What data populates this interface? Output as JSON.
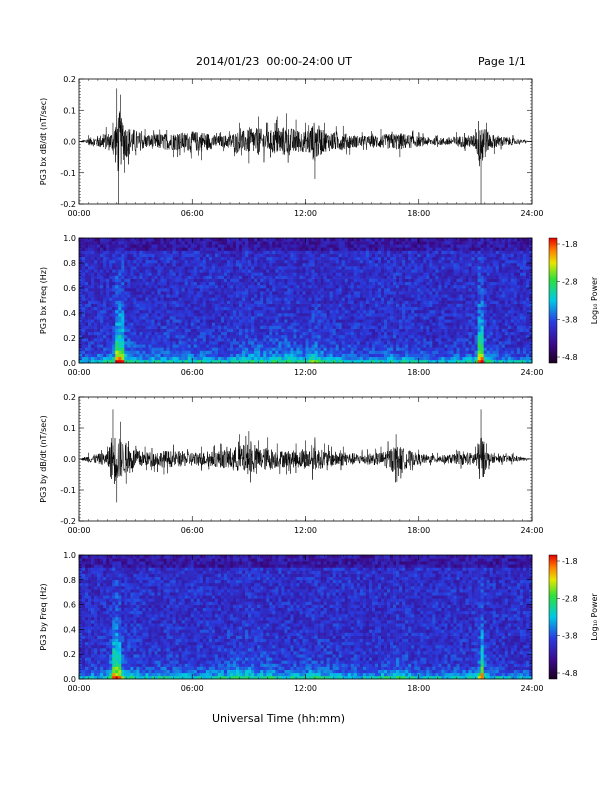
{
  "header": {
    "title": "2014/01/23  00:00-24:00 UT",
    "page": "Page 1/1"
  },
  "xaxis": {
    "label": "Universal Time (hh:mm)",
    "ticks": [
      "00:00",
      "06:00",
      "12:00",
      "18:00",
      "24:00"
    ],
    "range_hours": [
      0,
      24
    ]
  },
  "colorbar": {
    "label": "Log₁₀ Power",
    "ticks": [
      "-1.8",
      "-2.8",
      "-3.8",
      "-4.8"
    ],
    "range": [
      -4.8,
      -1.8
    ]
  },
  "chart_data": [
    {
      "type": "line",
      "ylabel": "PG3 bx dB/dt (nT/sec)",
      "ylim": [
        -0.2,
        0.2
      ],
      "yticks": [
        "0.2",
        "0.1",
        "0.0",
        "-0.1",
        "-0.2"
      ],
      "series": [
        {
          "x": [
            0,
            0.5,
            1.8,
            2.0,
            2.1,
            2.2,
            2.4,
            3.5,
            5.0,
            6.5,
            7.5,
            8.5,
            9.0,
            9.5,
            10.0,
            10.5,
            11.0,
            11.5,
            12.0,
            12.5,
            13.0,
            14.0,
            15.0,
            16.0,
            17.0,
            18.0,
            19.0,
            20.0,
            21.0,
            21.3,
            21.6,
            22.0,
            23.0,
            24.0
          ],
          "y": [
            0.0,
            0.02,
            0.06,
            0.17,
            -0.2,
            0.15,
            -0.1,
            0.04,
            -0.05,
            -0.06,
            0.03,
            0.06,
            -0.07,
            0.08,
            0.06,
            0.08,
            0.09,
            0.07,
            0.06,
            -0.12,
            0.06,
            0.05,
            0.03,
            0.04,
            -0.05,
            0.03,
            0.02,
            0.03,
            0.04,
            -0.2,
            0.06,
            -0.04,
            0.02,
            0.0
          ]
        }
      ]
    },
    {
      "type": "heatmap",
      "ylabel": "PG3 bx Freq (Hz)",
      "ylim": [
        0.0,
        1.0
      ],
      "yticks": [
        "1.0",
        "0.8",
        "0.6",
        "0.4",
        "0.2",
        "0.0"
      ],
      "zlim": [
        -4.8,
        -1.8
      ]
    },
    {
      "type": "line",
      "ylabel": "PG3 by dB/dt (nT/sec)",
      "ylim": [
        -0.2,
        0.2
      ],
      "yticks": [
        "0.2",
        "0.1",
        "0.0",
        "-0.1",
        "-0.2"
      ],
      "series": [
        {
          "x": [
            0,
            0.5,
            1.5,
            1.8,
            2.0,
            2.2,
            2.5,
            3.5,
            4.5,
            6.5,
            7.5,
            8.5,
            9.0,
            9.5,
            10.0,
            10.5,
            11.0,
            11.5,
            12.0,
            12.5,
            13.0,
            14.0,
            15.0,
            16.0,
            16.8,
            18.0,
            19.0,
            20.0,
            21.0,
            21.3,
            21.6,
            22.0,
            23.0,
            24.0
          ],
          "y": [
            0.0,
            0.02,
            0.04,
            0.16,
            -0.14,
            0.12,
            -0.08,
            0.04,
            -0.05,
            0.04,
            0.05,
            0.08,
            0.09,
            0.06,
            0.07,
            0.05,
            -0.05,
            0.05,
            0.06,
            0.07,
            0.05,
            0.04,
            0.03,
            0.04,
            0.08,
            0.03,
            0.02,
            0.03,
            0.04,
            0.16,
            0.05,
            0.02,
            0.02,
            0.0
          ]
        }
      ]
    },
    {
      "type": "heatmap",
      "ylabel": "PG3 by Freq (Hz)",
      "ylim": [
        0.0,
        1.0
      ],
      "yticks": [
        "1.0",
        "0.8",
        "0.6",
        "0.4",
        "0.2",
        "0.0"
      ],
      "zlim": [
        -4.8,
        -1.8
      ]
    }
  ]
}
